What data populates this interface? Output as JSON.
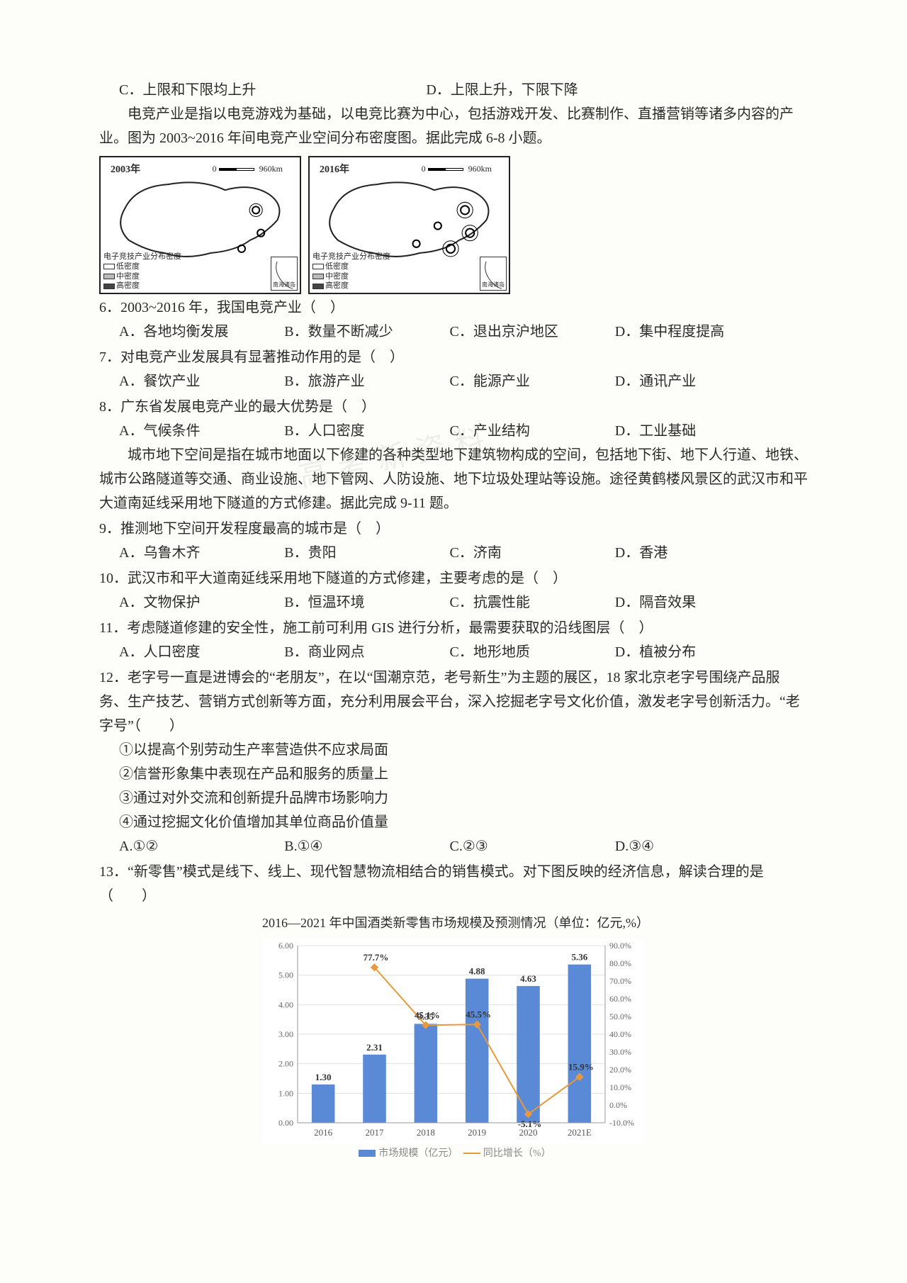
{
  "top_options": {
    "C": "C．上限和下限均上升",
    "D": "D．上限上升，下限下降"
  },
  "passage_ecomp": "电竞产业是指以电竞游戏为基础，以电竞比赛为中心，包括游戏开发、比赛制作、直播营销等诸多内容的产业。图为 2003~2016 年间电竞产业空间分布密度图。据此完成 6-8 小题。",
  "maps": {
    "left_year": "2003年",
    "right_year": "2016年",
    "scale_num": "0",
    "scale_label": "960km",
    "legend_title": "电子竞技产业分布密度",
    "legend_low": "低密度",
    "legend_mid": "中密度",
    "legend_high": "高密度",
    "inset_label": "南海诸岛"
  },
  "q6": {
    "stem": "6．2003~2016 年，我国电竞产业（　）",
    "A": "A．各地均衡发展",
    "B": "B．数量不断减少",
    "C": "C．退出京沪地区",
    "D": "D．集中程度提高"
  },
  "q7": {
    "stem": "7．对电竞产业发展具有显著推动作用的是（　）",
    "A": "A．餐饮产业",
    "B": "B．旅游产业",
    "C": "C．能源产业",
    "D": "D．通讯产业"
  },
  "q8": {
    "stem": "8．广东省发展电竞产业的最大优势是（　）",
    "A": "A．气候条件",
    "B": "B．人口密度",
    "C": "C．产业结构",
    "D": "D．工业基础"
  },
  "passage_under": "城市地下空间是指在城市地面以下修建的各种类型地下建筑物构成的空间，包括地下街、地下人行道、地铁、城市公路隧道等交通、商业设施、地下管网、人防设施、地下垃圾处理站等设施。途径黄鹤楼风景区的武汉市和平大道南延线采用地下隧道的方式修建。据此完成 9-11 题。",
  "q9": {
    "stem": "9．推测地下空间开发程度最高的城市是（　）",
    "A": "A．乌鲁木齐",
    "B": "B．贵阳",
    "C": "C．济南",
    "D": "D．香港"
  },
  "q10": {
    "stem": "10．武汉市和平大道南延线采用地下隧道的方式修建，主要考虑的是（　）",
    "A": "A．文物保护",
    "B": "B．恒温环境",
    "C": "C．抗震性能",
    "D": "D．隔音效果"
  },
  "q11": {
    "stem": "11．考虑隧道修建的安全性，施工前可利用 GIS 进行分析，最需要获取的沿线图层（　）",
    "A": "A．人口密度",
    "B": "B．商业网点",
    "C": "C．地形地质",
    "D": "D．植被分布"
  },
  "q12": {
    "stem": "12．老字号一直是进博会的“老朋友”，在以“国潮京范，老号新生”为主题的展区，18 家北京老字号围绕产品服务、生产技艺、营销方式创新等方面，充分利用展会平台，深入挖掘老字号文化价值，激发老字号创新活力。“老字号”（　　）",
    "s1": "①以提高个别劳动生产率营造供不应求局面",
    "s2": "②信誉形象集中表现在产品和服务的质量上",
    "s3": "③通过对外交流和创新提升品牌市场影响力",
    "s4": "④通过挖掘文化价值增加其单位商品价值量",
    "A": "A.①②",
    "B": "B.①④",
    "C": "C.②③",
    "D": "D.③④"
  },
  "q13": {
    "stem": "13．“新零售”模式是线下、线上、现代智慧物流相结合的销售模式。对下图反映的经济信息，解读合理的是（　　）"
  },
  "chart": {
    "title": "2016—2021 年中国酒类新零售市场规模及预测情况（单位：亿元,%）",
    "years": [
      "2016",
      "2017",
      "2018",
      "2019",
      "2020",
      "2021E"
    ],
    "bar_values": [
      1.3,
      2.31,
      3.35,
      4.88,
      4.63,
      5.36
    ],
    "bar_labels": [
      "1.30",
      "2.31",
      "3.35",
      "4.88",
      "4.63",
      "5.36"
    ],
    "line_values_pct": [
      null,
      77.7,
      45.1,
      45.5,
      -5.1,
      15.9
    ],
    "line_labels": [
      "",
      "77.7%",
      "45.1%",
      "45.5%",
      "-5.1%",
      "15.9%"
    ],
    "bar_color": "#5a8ad6",
    "line_color": "#e89a3a",
    "grid_color": "#e0e0e0",
    "background_color": "#ffffff",
    "left_axis": {
      "ticks": [
        "0.00",
        "1.00",
        "2.00",
        "3.00",
        "4.00",
        "5.00",
        "6.00"
      ],
      "min": 0,
      "max": 6
    },
    "right_axis": {
      "ticks": [
        "-10.0%",
        "0.0%",
        "10.0%",
        "20.0%",
        "30.0%",
        "40.0%",
        "50.0%",
        "60.0%",
        "70.0%",
        "80.0%",
        "90.0%"
      ],
      "min": -10,
      "max": 90
    },
    "legend_bar": "市场规模（亿元）",
    "legend_line": "同比增长（%）"
  },
  "watermark": "高考新资料"
}
